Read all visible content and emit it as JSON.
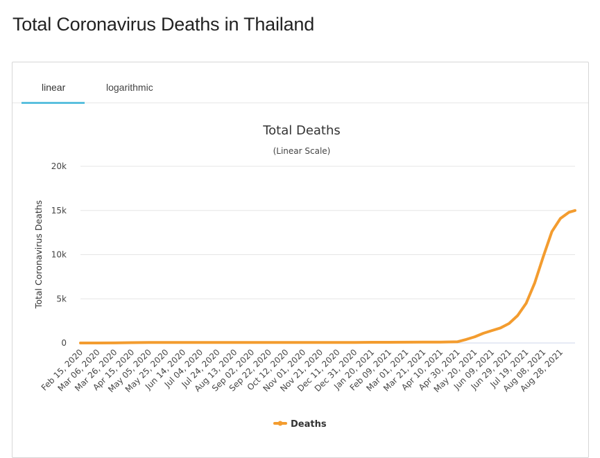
{
  "page": {
    "title": "Total Coronavirus Deaths in Thailand"
  },
  "tabs": [
    {
      "label": "linear",
      "active": true
    },
    {
      "label": "logarithmic",
      "active": false
    }
  ],
  "colors": {
    "series": "#f39c2f",
    "active_tab": "#5bc0de",
    "grid": "#e6e6e6"
  },
  "chart_data": {
    "type": "line",
    "title": "Total Deaths",
    "subtitle": "(Linear Scale)",
    "ylabel": "Total Coronavirus Deaths",
    "xlabel": "",
    "ylim": [
      0,
      20000
    ],
    "yticks": [
      0,
      5000,
      10000,
      15000,
      20000
    ],
    "ytick_labels": [
      "0",
      "5k",
      "10k",
      "15k",
      "20k"
    ],
    "grid": true,
    "legend": "bottom",
    "x_tick_labels": [
      "Feb 15, 2020",
      "Mar 06, 2020",
      "Mar 26, 2020",
      "Apr 15, 2020",
      "May 05, 2020",
      "May 25, 2020",
      "Jun 14, 2020",
      "Jul 04, 2020",
      "Jul 24, 2020",
      "Aug 13, 2020",
      "Sep 02, 2020",
      "Sep 22, 2020",
      "Oct 12, 2020",
      "Nov 01, 2020",
      "Nov 21, 2020",
      "Dec 11, 2020",
      "Dec 31, 2020",
      "Jan 20, 2021",
      "Feb 09, 2021",
      "Mar 01, 2021",
      "Mar 21, 2021",
      "Apr 10, 2021",
      "Apr 30, 2021",
      "May 20, 2021",
      "Jun 09, 2021",
      "Jun 29, 2021",
      "Jul 19, 2021",
      "Aug 08, 2021",
      "Aug 28, 2021"
    ],
    "series": [
      {
        "name": "Deaths",
        "x": [
          "Feb 15, 2020",
          "Mar 06, 2020",
          "Mar 26, 2020",
          "Apr 15, 2020",
          "May 05, 2020",
          "May 25, 2020",
          "Jun 14, 2020",
          "Jul 04, 2020",
          "Jul 24, 2020",
          "Aug 13, 2020",
          "Sep 02, 2020",
          "Sep 22, 2020",
          "Oct 12, 2020",
          "Nov 01, 2020",
          "Nov 21, 2020",
          "Dec 11, 2020",
          "Dec 31, 2020",
          "Jan 20, 2021",
          "Feb 09, 2021",
          "Mar 01, 2021",
          "Mar 21, 2021",
          "Apr 10, 2021",
          "Apr 30, 2021",
          "May 10, 2021",
          "May 20, 2021",
          "May 30, 2021",
          "Jun 09, 2021",
          "Jun 19, 2021",
          "Jun 29, 2021",
          "Jul 09, 2021",
          "Jul 19, 2021",
          "Jul 29, 2021",
          "Aug 08, 2021",
          "Aug 18, 2021",
          "Aug 28, 2021",
          "Sep 07, 2021",
          "Sep 14, 2021"
        ],
        "values": [
          0,
          1,
          4,
          38,
          54,
          57,
          58,
          58,
          58,
          58,
          58,
          59,
          59,
          60,
          60,
          60,
          60,
          76,
          80,
          85,
          94,
          97,
          140,
          400,
          700,
          1100,
          1400,
          1700,
          2200,
          3100,
          4500,
          6800,
          9800,
          12600,
          14100,
          14800,
          15000
        ]
      }
    ]
  },
  "legend": {
    "label": "Deaths"
  }
}
